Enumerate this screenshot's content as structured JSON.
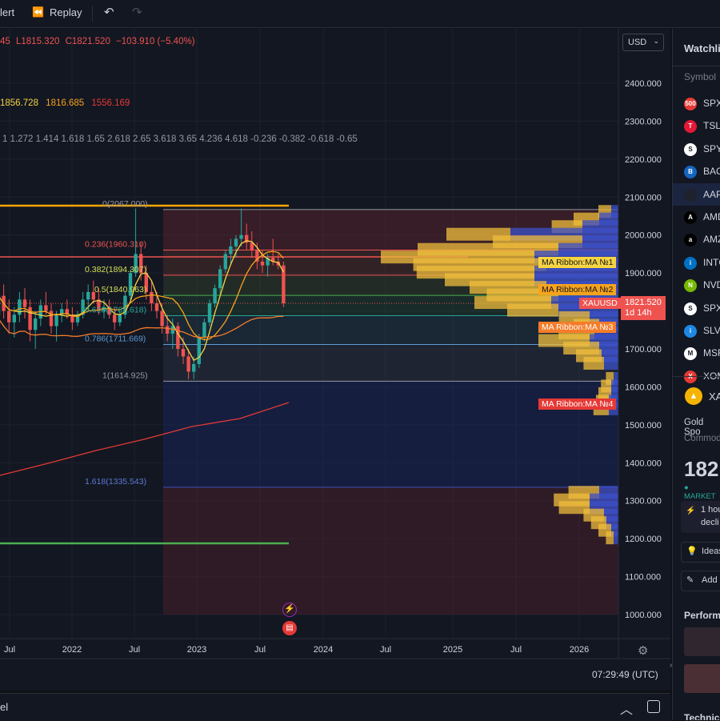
{
  "toolbar": {
    "alert_label": "lert",
    "replay_label": "Replay"
  },
  "legend": {
    "ohlc_prefix": "45",
    "low_label": "L1815.320",
    "close_label": "C1821.520",
    "change_label": "−103.910 (−5.40%)",
    "ma_values": [
      "1856.728",
      "1816.685",
      "1556.169"
    ],
    "fib_levels_text": "1 1.272 1.414 1.618 1.65 2.618 2.65 3.618 3.65 4.236 4.618 -0.236 -0.382 -0.618 -0.65"
  },
  "currency": "USD",
  "price_axis": [
    "2400.000",
    "2300.000",
    "2200.000",
    "2100.000",
    "2000.000",
    "1900.000",
    "1800.000",
    "1700.000",
    "1600.000",
    "1500.000",
    "1400.000",
    "1300.000",
    "1200.000",
    "1100.000",
    "1000.000"
  ],
  "time_axis": [
    "Jul",
    "2022",
    "Jul",
    "2023",
    "Jul",
    "2024",
    "Jul",
    "2025",
    "Jul",
    "2026"
  ],
  "fib_labels": [
    "0(2067.000)",
    "0.236(1960.310)",
    "0.382(1894.307)",
    "0.5(1840.963)",
    "0.618(1787.618)",
    "0.786(1711.669)",
    "1(1614.925)",
    "1.618(1335.543)"
  ],
  "ribbon_tags": [
    "MA Ribbon:MA №1",
    "MA Ribbon:MA №2",
    "MA Ribbon:MA №3",
    "MA Ribbon:MA №4"
  ],
  "symbol_tag": "XAUUSD",
  "price_tag": {
    "price": "1821.520",
    "countdown": "1d 14h"
  },
  "clock": "07:29:49 (UTC)",
  "bottom_panel_label": "el",
  "watchlist": {
    "title": "Watchli",
    "column": "Symbol",
    "items": [
      {
        "sym": "SPX",
        "icon": "500",
        "color": "#e53935"
      },
      {
        "sym": "TSLA",
        "icon": "T",
        "color": "#e31937"
      },
      {
        "sym": "SPY",
        "icon": "S",
        "color": "#ffffff"
      },
      {
        "sym": "BAC",
        "icon": "B",
        "color": "#1565c0"
      },
      {
        "sym": "AAP",
        "icon": "",
        "color": "#1e222d"
      },
      {
        "sym": "AMD",
        "icon": "A",
        "color": "#000000"
      },
      {
        "sym": "AMZ",
        "icon": "a",
        "color": "#000000"
      },
      {
        "sym": "INTC",
        "icon": "i",
        "color": "#0071c5"
      },
      {
        "sym": "NVD",
        "icon": "N",
        "color": "#76b900"
      },
      {
        "sym": "SPX",
        "icon": "S",
        "color": "#ffffff"
      },
      {
        "sym": "SLV",
        "icon": "i",
        "color": "#1e88e5"
      },
      {
        "sym": "MSF",
        "icon": "M",
        "color": "#ffffff"
      },
      {
        "sym": "XOM",
        "icon": "X",
        "color": "#e53935"
      }
    ],
    "detail_symbol": "XA",
    "detail_name": "Gold Spo",
    "detail_type": "Commod",
    "detail_price": "182",
    "market_status": "● MARKET",
    "news_line1": "1 hou",
    "news_line2": "decli",
    "ideas_label": "Ideas",
    "add_label": "Add n",
    "performance_label": "Perform",
    "technicals_label": "Technic"
  },
  "chart_data": {
    "type": "candlestick",
    "symbol": "XAUUSD",
    "ylim": [
      1000,
      2450
    ],
    "fib_levels": [
      {
        "ratio": 0,
        "price": 2067.0
      },
      {
        "ratio": 0.236,
        "price": 1960.31
      },
      {
        "ratio": 0.382,
        "price": 1894.307
      },
      {
        "ratio": 0.5,
        "price": 1840.963
      },
      {
        "ratio": 0.618,
        "price": 1787.618
      },
      {
        "ratio": 0.786,
        "price": 1711.669
      },
      {
        "ratio": 1,
        "price": 1614.925
      },
      {
        "ratio": 1.618,
        "price": 1335.543
      }
    ],
    "last_price": 1821.52,
    "ohlc": [
      [
        1790,
        1860,
        1760,
        1840
      ],
      [
        1840,
        1870,
        1780,
        1800
      ],
      [
        1800,
        1830,
        1740,
        1770
      ],
      [
        1770,
        1810,
        1730,
        1790
      ],
      [
        1790,
        1850,
        1770,
        1830
      ],
      [
        1830,
        1860,
        1780,
        1810
      ],
      [
        1810,
        1830,
        1720,
        1750
      ],
      [
        1750,
        1800,
        1700,
        1780
      ],
      [
        1780,
        1830,
        1760,
        1815
      ],
      [
        1815,
        1850,
        1790,
        1800
      ],
      [
        1800,
        1820,
        1740,
        1760
      ],
      [
        1760,
        1800,
        1720,
        1790
      ],
      [
        1790,
        1820,
        1770,
        1805
      ],
      [
        1805,
        1830,
        1780,
        1790
      ],
      [
        1790,
        1810,
        1750,
        1770
      ],
      [
        1770,
        1800,
        1760,
        1790
      ],
      [
        1790,
        1850,
        1780,
        1830
      ],
      [
        1830,
        1870,
        1800,
        1850
      ],
      [
        1850,
        1880,
        1820,
        1830
      ],
      [
        1830,
        1860,
        1790,
        1800
      ],
      [
        1800,
        1830,
        1780,
        1810
      ],
      [
        1810,
        1830,
        1780,
        1790
      ],
      [
        1790,
        1810,
        1750,
        1770
      ],
      [
        1770,
        1800,
        1760,
        1790
      ],
      [
        1790,
        1850,
        1780,
        1840
      ],
      [
        1840,
        1910,
        1830,
        1900
      ],
      [
        1900,
        2070,
        1890,
        1950
      ],
      [
        1950,
        1980,
        1880,
        1900
      ],
      [
        1900,
        1920,
        1830,
        1850
      ],
      [
        1850,
        1880,
        1800,
        1820
      ],
      [
        1820,
        1850,
        1780,
        1800
      ],
      [
        1800,
        1820,
        1740,
        1760
      ],
      [
        1760,
        1790,
        1720,
        1740
      ],
      [
        1740,
        1780,
        1700,
        1760
      ],
      [
        1760,
        1770,
        1680,
        1700
      ],
      [
        1700,
        1730,
        1660,
        1680
      ],
      [
        1680,
        1700,
        1620,
        1640
      ],
      [
        1640,
        1680,
        1620,
        1660
      ],
      [
        1660,
        1740,
        1650,
        1730
      ],
      [
        1730,
        1780,
        1720,
        1770
      ],
      [
        1770,
        1830,
        1760,
        1820
      ],
      [
        1820,
        1870,
        1810,
        1860
      ],
      [
        1860,
        1920,
        1840,
        1910
      ],
      [
        1910,
        1960,
        1900,
        1950
      ],
      [
        1950,
        1990,
        1920,
        1970
      ],
      [
        1970,
        2000,
        1940,
        1990
      ],
      [
        1990,
        2070,
        1970,
        2000
      ],
      [
        2000,
        2030,
        1960,
        1980
      ],
      [
        1980,
        2010,
        1940,
        1960
      ],
      [
        1960,
        1980,
        1910,
        1930
      ],
      [
        1930,
        1960,
        1900,
        1920
      ],
      [
        1920,
        1950,
        1890,
        1940
      ],
      [
        1940,
        1990,
        1920,
        1930
      ],
      [
        1930,
        1950,
        1910,
        1920
      ],
      [
        1920,
        1930,
        1810,
        1820
      ]
    ],
    "volume_profile": [
      {
        "price": 2060,
        "up": 0.05,
        "down": 0.03
      },
      {
        "price": 2040,
        "up": 0.1,
        "down": 0.08
      },
      {
        "price": 2020,
        "up": 0.12,
        "down": 0.15
      },
      {
        "price": 2000,
        "up": 0.25,
        "down": 0.45
      },
      {
        "price": 1980,
        "up": 0.35,
        "down": 0.15
      },
      {
        "price": 1960,
        "up": 0.55,
        "down": 0.25
      },
      {
        "price": 1940,
        "up": 0.6,
        "down": 0.35
      },
      {
        "price": 1920,
        "up": 0.52,
        "down": 0.3
      },
      {
        "price": 1900,
        "up": 0.46,
        "down": 0.35
      },
      {
        "price": 1880,
        "up": 0.35,
        "down": 0.35
      },
      {
        "price": 1860,
        "up": 0.3,
        "down": 0.3
      },
      {
        "price": 1840,
        "up": 0.28,
        "down": 0.25
      },
      {
        "price": 1820,
        "up": 0.3,
        "down": 0.28
      },
      {
        "price": 1800,
        "up": 0.2,
        "down": 0.25
      },
      {
        "price": 1780,
        "up": 0.12,
        "down": 0.12
      },
      {
        "price": 1760,
        "up": 0.1,
        "down": 0.08
      },
      {
        "price": 1740,
        "up": 0.14,
        "down": 0.1
      },
      {
        "price": 1720,
        "up": 0.2,
        "down": 0.12
      },
      {
        "price": 1700,
        "up": 0.14,
        "down": 0.08
      },
      {
        "price": 1680,
        "up": 0.1,
        "down": 0.07
      },
      {
        "price": 1660,
        "up": 0.08,
        "down": 0.06
      },
      {
        "price": 1620,
        "up": 0.03,
        "down": 0.02
      },
      {
        "price": 1600,
        "up": 0.04,
        "down": 0.03
      },
      {
        "price": 1580,
        "up": 0.05,
        "down": 0.03
      },
      {
        "price": 1560,
        "up": 0.05,
        "down": 0.04
      },
      {
        "price": 1540,
        "up": 0.06,
        "down": 0.04
      },
      {
        "price": 1320,
        "up": 0.12,
        "down": 0.08
      },
      {
        "price": 1300,
        "up": 0.14,
        "down": 0.12
      },
      {
        "price": 1280,
        "up": 0.12,
        "down": 0.12
      },
      {
        "price": 1260,
        "up": 0.08,
        "down": 0.06
      },
      {
        "price": 1240,
        "up": 0.06,
        "down": 0.05
      },
      {
        "price": 1220,
        "up": 0.05,
        "down": 0.03
      },
      {
        "price": 1200,
        "up": 0.03,
        "down": 0.02
      }
    ]
  },
  "colors": {
    "up": "#26a69a",
    "down": "#ef5350",
    "ma1": "#f5d442",
    "ma2": "#f7a31c",
    "ma3": "#f57c2a",
    "ma4": "#e53935",
    "fib_orange": "#f7a600",
    "fib_green": "#4caf50"
  }
}
